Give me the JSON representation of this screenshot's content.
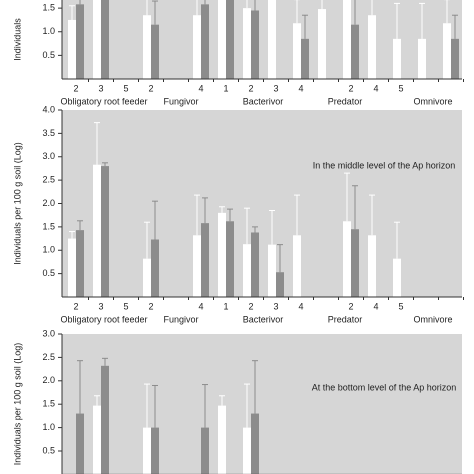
{
  "chart_data": [
    {
      "type": "bar",
      "y_label": "Individuals",
      "ylim": [
        0,
        4
      ],
      "yticks": [
        0.5,
        {
          "value": 1,
          "label": "1.0"
        },
        1.5
      ],
      "categories": [
        "2",
        "3",
        "5",
        "2",
        null,
        "4",
        "1",
        "2",
        "3",
        "4",
        null,
        "2",
        "4",
        "5",
        null,
        null
      ],
      "groups": [
        "Obligatory root feeder",
        "Fungivor",
        "Bacterivor",
        "Predator",
        "Omnivore"
      ],
      "series": [
        {
          "color": "#ffffff",
          "values": [
            1.25,
            1.75,
            null,
            1.35,
            null,
            1.35,
            1.75,
            1.5,
            1.75,
            1.18,
            1.48,
            1.75,
            1.35,
            0.85,
            0.85,
            1.18
          ],
          "errors": [
            0.3,
            0.5,
            null,
            0.4,
            null,
            0.5,
            0.5,
            0.5,
            0.5,
            0.5,
            0.5,
            0.5,
            0.5,
            0.75,
            0.75,
            0.5
          ]
        },
        {
          "color": "#8c8c8c",
          "values": [
            1.58,
            1.75,
            null,
            1.15,
            null,
            1.58,
            1.75,
            1.45,
            null,
            0.85,
            null,
            1.15,
            null,
            null,
            null,
            0.85
          ],
          "errors": [
            0.2,
            0.5,
            null,
            0.5,
            null,
            0.5,
            0.5,
            0.5,
            null,
            0.5,
            null,
            0.6,
            null,
            null,
            null,
            0.5
          ]
        }
      ]
    },
    {
      "type": "bar",
      "title": "In the middle level of the Ap horizon",
      "y_label": "Individuals per 100 g soil (Log)",
      "ylim": [
        0,
        4
      ],
      "yticks": [
        0.5,
        {
          "value": 1,
          "label": "1.0"
        },
        1.5,
        {
          "value": 2,
          "label": "2.0"
        },
        2.5,
        {
          "value": 3,
          "label": "3.0"
        },
        3.5,
        {
          "value": 4,
          "label": "4.0"
        }
      ],
      "categories": [
        "2",
        "3",
        "5",
        "2",
        null,
        "4",
        "1",
        "2",
        "3",
        "4",
        null,
        "2",
        "4",
        "5",
        null,
        null
      ],
      "groups": [
        "Obligatory root feeder",
        "Fungivor",
        "Bacterivor",
        "Predator",
        "Omnivore"
      ],
      "series": [
        {
          "color": "#ffffff",
          "values": [
            1.25,
            2.83,
            null,
            0.82,
            null,
            1.32,
            1.8,
            1.13,
            1.12,
            1.32,
            null,
            1.62,
            1.32,
            0.82,
            null,
            null
          ],
          "errors": [
            0.15,
            0.9,
            null,
            0.78,
            null,
            0.86,
            0.13,
            0.77,
            0.73,
            0.86,
            null,
            1.03,
            0.86,
            0.78,
            null,
            null
          ]
        },
        {
          "color": "#8c8c8c",
          "values": [
            1.43,
            2.8,
            null,
            1.23,
            null,
            1.58,
            1.62,
            1.38,
            0.53,
            null,
            null,
            1.45,
            null,
            null,
            null,
            null
          ],
          "errors": [
            0.2,
            0.07,
            null,
            0.82,
            null,
            0.54,
            0.26,
            0.12,
            0.59,
            null,
            null,
            0.93,
            null,
            null,
            null,
            null
          ]
        }
      ]
    },
    {
      "type": "bar",
      "title": "At the bottom level of the Ap horizon",
      "y_label": "Individuals per 100 g soil (Log)",
      "ylim": [
        0,
        3
      ],
      "yticks": [
        0.5,
        {
          "value": 1,
          "label": "1.0"
        },
        1.5,
        {
          "value": 2,
          "label": "2.0"
        },
        2.5,
        {
          "value": 3,
          "label": "3.0"
        }
      ],
      "series": [
        {
          "color": "#ffffff",
          "values": [
            null,
            1.47,
            null,
            1.0,
            null,
            null,
            1.47,
            1.0,
            null,
            null,
            null,
            null,
            null,
            null,
            null,
            null
          ],
          "errors": [
            null,
            0.21,
            null,
            0.93,
            null,
            null,
            0.21,
            0.93,
            null,
            null,
            null,
            null,
            null,
            null,
            null,
            null
          ]
        },
        {
          "color": "#8c8c8c",
          "values": [
            1.3,
            2.32,
            null,
            1.0,
            null,
            1.0,
            null,
            1.3,
            null,
            null,
            null,
            null,
            null,
            null,
            null,
            null
          ],
          "errors": [
            1.13,
            0.16,
            null,
            0.9,
            null,
            0.92,
            null,
            1.13,
            null,
            null,
            null,
            null,
            null,
            null,
            null,
            null
          ]
        }
      ]
    }
  ]
}
